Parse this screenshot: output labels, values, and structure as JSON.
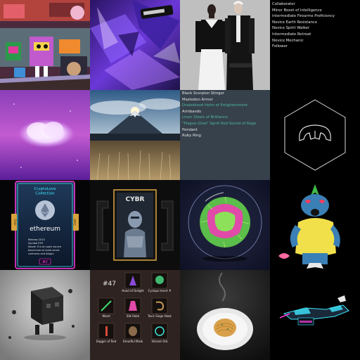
{
  "gallery": {
    "text_tile_black": {
      "items": [
        "Collaborator",
        "Minor Boost of Intelligence",
        "Intermediate Firearms Proficiency",
        "Novice Earth Resistance",
        "Novice Spirit Walker",
        "Intermediate Retreat",
        "Novice Mechanic",
        "Follower"
      ],
      "text_color": "#e6e6e6",
      "background": "#000000"
    },
    "text_tile_slate": {
      "items": [
        "Black Scorpion Stinger",
        "Mastodon Armor",
        "Drakeblood Helm of Enlightenment",
        "Armbands",
        "Linen Shoes of Brilliance",
        "\"Plague Glow\" Spirit Rod Sound of Rage",
        "Pendant",
        "Ruby Ring"
      ],
      "item_colors": [
        "#e6e6e6",
        "#e6e6e6",
        "#4fb9a0",
        "#e6e6e6",
        "#4fb9a0",
        "#4fb9a0",
        "#e6e6e6",
        "#e6e6e6"
      ],
      "background": "#36414c"
    },
    "crypto_card": {
      "title_line1": "CryptoLove",
      "title_line2": "Collection",
      "coin_name": "ethereum",
      "side_label": "Gold",
      "details": [
        "Release 2015",
        "Symbol ETH",
        "About: It is an open source",
        "blockchain to build smart",
        "contracts and dApps."
      ],
      "number": "#2"
    },
    "cyber_frame": {
      "title": "CYBR"
    },
    "item_inventory": {
      "number": "#47",
      "labels": [
        "Hood of Delight",
        "Cyclops Insert #",
        "Wand",
        "Silk Robe",
        "Toxic Siege Hook",
        "Dagger of Red",
        "Dreadful Mask",
        "Vibrant Orb"
      ]
    },
    "colors": {
      "background": "#000000",
      "gold": "#d8a33c",
      "cyan_glow": "#3fe8ff",
      "magenta_glow": "#ff3ad8"
    }
  }
}
